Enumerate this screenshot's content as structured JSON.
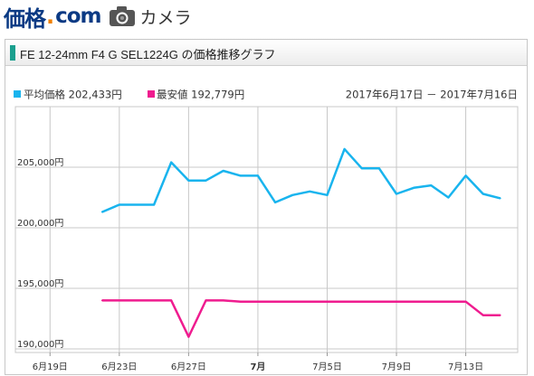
{
  "site": {
    "logo_main": "価格",
    "logo_dot": ".",
    "logo_com": "com",
    "category": "カメラ"
  },
  "panel": {
    "title": "FE 12-24mm F4 G SEL1224G の価格推移グラフ"
  },
  "colors": {
    "avg": "#19b4ee",
    "min": "#ef1c8f",
    "grid": "#c8c8c8",
    "accent": "#1a9f8e"
  },
  "chart_data": {
    "type": "line",
    "title": "FE 12-24mm F4 G SEL1224G の価格推移グラフ",
    "date_range": "2017年6月17日 － 2017年7月16日",
    "x": [
      "6/22",
      "6/23",
      "6/24",
      "6/25",
      "6/26",
      "6/27",
      "6/28",
      "6/29",
      "6/30",
      "7/1",
      "7/2",
      "7/3",
      "7/4",
      "7/5",
      "7/6",
      "7/7",
      "7/8",
      "7/9",
      "7/10",
      "7/11",
      "7/12",
      "7/13",
      "7/14",
      "7/15"
    ],
    "series": [
      {
        "name": "平均価格",
        "value_label": "202,433円",
        "values": [
          201300,
          201900,
          201900,
          201900,
          205400,
          203900,
          203900,
          204700,
          204300,
          204300,
          202100,
          202700,
          203000,
          202700,
          206500,
          204900,
          204900,
          202800,
          203300,
          203500,
          202500,
          204300,
          202800,
          202433
        ]
      },
      {
        "name": "最安値",
        "value_label": "192,779円",
        "values": [
          194000,
          194000,
          194000,
          194000,
          194000,
          191000,
          194000,
          194000,
          193900,
          193900,
          193900,
          193900,
          193900,
          193900,
          193900,
          193900,
          193900,
          193900,
          193900,
          193900,
          193900,
          193900,
          192779,
          192779
        ]
      }
    ],
    "y_ticks": [
      {
        "value": 190000,
        "label": "190,000円"
      },
      {
        "value": 195000,
        "label": "195,000円"
      },
      {
        "value": 200000,
        "label": "200,000円"
      },
      {
        "value": 205000,
        "label": "205,000円"
      }
    ],
    "x_ticks": [
      {
        "date": "6/19",
        "label": "6月19日",
        "bold": false
      },
      {
        "date": "6/23",
        "label": "6月23日",
        "bold": false
      },
      {
        "date": "6/27",
        "label": "6月27日",
        "bold": false
      },
      {
        "date": "7/1",
        "label": "7月",
        "bold": true
      },
      {
        "date": "7/5",
        "label": "7月5日",
        "bold": false
      },
      {
        "date": "7/9",
        "label": "7月9日",
        "bold": false
      },
      {
        "date": "7/13",
        "label": "7月13日",
        "bold": false
      }
    ],
    "ylim": [
      189700,
      210000
    ],
    "xlim": [
      "6/17",
      "7/16"
    ],
    "grid": true,
    "legend": "top-left"
  }
}
